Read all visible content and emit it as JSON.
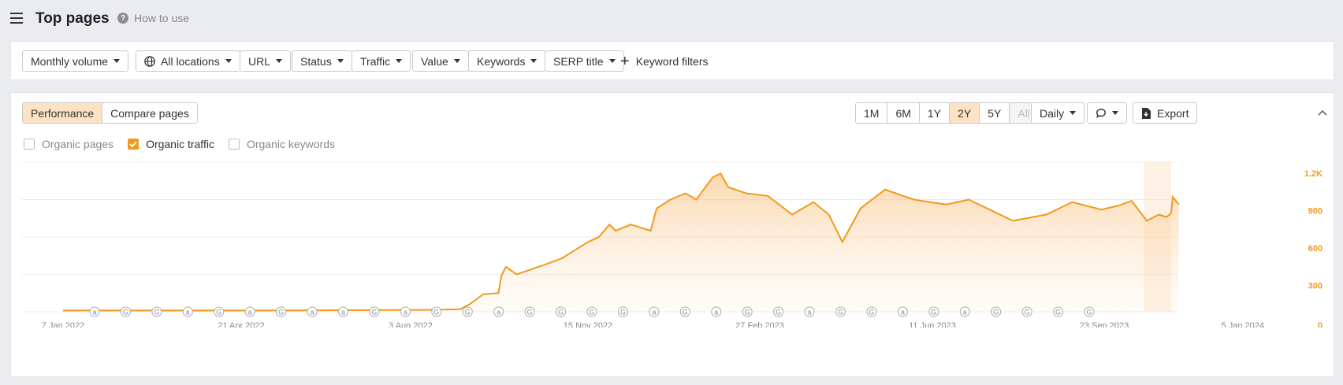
{
  "header": {
    "title": "Top pages",
    "how_to_use": "How to use"
  },
  "filters": {
    "monthly_volume": "Monthly volume",
    "all_locations": "All locations",
    "url": "URL",
    "status": "Status",
    "traffic": "Traffic",
    "value": "Value",
    "keywords": "Keywords",
    "serp_title": "SERP title",
    "keyword_filters": "Keyword filters"
  },
  "panel": {
    "tabs": [
      "Performance",
      "Compare pages"
    ],
    "active_tab": "Performance",
    "ranges": [
      "1M",
      "6M",
      "1Y",
      "2Y",
      "5Y",
      "All"
    ],
    "active_range": "2Y",
    "disabled_range": "All",
    "interval": "Daily",
    "export": "Export",
    "metrics": [
      {
        "label": "Organic pages",
        "checked": false
      },
      {
        "label": "Organic traffic",
        "checked": true
      },
      {
        "label": "Organic keywords",
        "checked": false
      }
    ]
  },
  "colors": {
    "accent": "#f19a1c",
    "accent_light": "#fde3c4"
  },
  "chart_data": {
    "type": "area",
    "series": [
      {
        "name": "Organic traffic",
        "points": [
          [
            "2022-01-07",
            10
          ],
          [
            "2022-03-01",
            10
          ],
          [
            "2022-06-01",
            10
          ],
          [
            "2022-09-01",
            15
          ],
          [
            "2022-09-25",
            20
          ],
          [
            "2022-10-01",
            60
          ],
          [
            "2022-10-10",
            140
          ],
          [
            "2022-10-20",
            150
          ],
          [
            "2022-10-22",
            290
          ],
          [
            "2022-10-25",
            360
          ],
          [
            "2022-11-01",
            300
          ],
          [
            "2022-11-08",
            330
          ],
          [
            "2022-11-20",
            380
          ],
          [
            "2022-12-01",
            430
          ],
          [
            "2022-12-10",
            500
          ],
          [
            "2022-12-18",
            560
          ],
          [
            "2022-12-25",
            600
          ],
          [
            "2023-01-01",
            700
          ],
          [
            "2023-01-05",
            650
          ],
          [
            "2023-01-15",
            700
          ],
          [
            "2023-01-28",
            650
          ],
          [
            "2023-02-01",
            830
          ],
          [
            "2023-02-10",
            900
          ],
          [
            "2023-02-20",
            950
          ],
          [
            "2023-02-27",
            900
          ],
          [
            "2023-03-05",
            1000
          ],
          [
            "2023-03-10",
            1080
          ],
          [
            "2023-03-15",
            1110
          ],
          [
            "2023-03-20",
            1000
          ],
          [
            "2023-04-01",
            950
          ],
          [
            "2023-04-15",
            930
          ],
          [
            "2023-05-01",
            780
          ],
          [
            "2023-05-15",
            880
          ],
          [
            "2023-05-25",
            780
          ],
          [
            "2023-06-03",
            560
          ],
          [
            "2023-06-15",
            830
          ],
          [
            "2023-07-01",
            980
          ],
          [
            "2023-07-20",
            900
          ],
          [
            "2023-08-10",
            860
          ],
          [
            "2023-08-25",
            900
          ],
          [
            "2023-09-23",
            730
          ],
          [
            "2023-10-15",
            780
          ],
          [
            "2023-11-01",
            880
          ],
          [
            "2023-11-20",
            820
          ],
          [
            "2023-12-01",
            850
          ],
          [
            "2023-12-10",
            890
          ],
          [
            "2023-12-20",
            730
          ],
          [
            "2023-12-28",
            780
          ],
          [
            "2024-01-02",
            760
          ],
          [
            "2024-01-05",
            790
          ],
          [
            "2024-01-06",
            920
          ],
          [
            "2024-01-10",
            860
          ]
        ]
      }
    ],
    "x_tick_labels": [
      "7 Jan 2022",
      "21 Apr 2022",
      "3 Aug 2022",
      "15 Nov 2022",
      "27 Feb 2023",
      "11 Jun 2023",
      "23 Sep 2023",
      "5 Jan 2024"
    ],
    "y_tick_labels": [
      "1.2K",
      "900",
      "600",
      "300",
      "0"
    ],
    "ylim": [
      0,
      1200
    ],
    "annotations": [
      "a",
      "G",
      "G",
      "a",
      "G",
      "a",
      "G",
      "a",
      "a",
      "G",
      "a",
      "G",
      "G",
      "a",
      "G",
      "G",
      "G",
      "G",
      "a",
      "G",
      "a",
      "G",
      "G",
      "a",
      "G",
      "G",
      "a",
      "G",
      "a",
      "G",
      "G",
      "G",
      "G"
    ],
    "grid": true
  }
}
